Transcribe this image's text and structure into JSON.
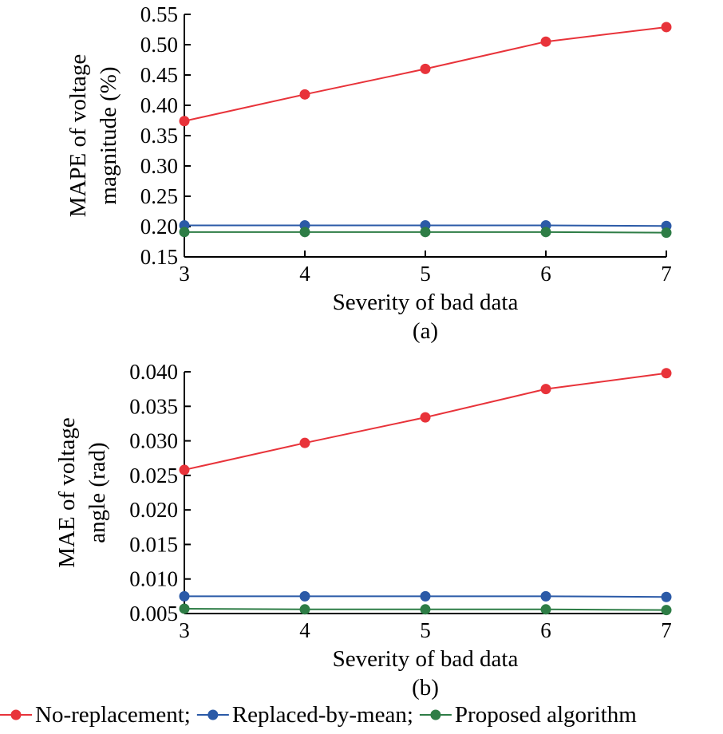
{
  "chart_data": [
    {
      "type": "line",
      "caption": "(a)",
      "xlabel": "Severity of bad data",
      "ylabel_lines": [
        "MAPE of voltage",
        "magnitude (%)"
      ],
      "x": [
        3,
        4,
        5,
        6,
        7
      ],
      "xlim": [
        3,
        7
      ],
      "ylim": [
        0.15,
        0.55
      ],
      "xticks": [
        "3",
        "4",
        "5",
        "6",
        "7"
      ],
      "yticks": [
        "0.15",
        "0.20",
        "0.25",
        "0.30",
        "0.35",
        "0.40",
        "0.45",
        "0.50",
        "0.55"
      ],
      "grid": false,
      "series": [
        {
          "name": "No-replacement",
          "color": "#e8333a",
          "values": [
            0.374,
            0.418,
            0.46,
            0.505,
            0.529
          ]
        },
        {
          "name": "Replaced-by-mean",
          "color": "#2b5aa7",
          "values": [
            0.202,
            0.202,
            0.202,
            0.202,
            0.201
          ]
        },
        {
          "name": "Proposed algorithm",
          "color": "#2e7d46",
          "values": [
            0.191,
            0.191,
            0.191,
            0.191,
            0.19
          ]
        }
      ]
    },
    {
      "type": "line",
      "caption": "(b)",
      "xlabel": "Severity of bad data",
      "ylabel_lines": [
        "MAE of voltage",
        "angle (rad)"
      ],
      "x": [
        3,
        4,
        5,
        6,
        7
      ],
      "xlim": [
        3,
        7
      ],
      "ylim": [
        0.005,
        0.04
      ],
      "xticks": [
        "3",
        "4",
        "5",
        "6",
        "7"
      ],
      "yticks": [
        "0.005",
        "0.010",
        "0.015",
        "0.020",
        "0.025",
        "0.030",
        "0.035",
        "0.040"
      ],
      "grid": false,
      "series": [
        {
          "name": "No-replacement",
          "color": "#e8333a",
          "values": [
            0.0258,
            0.0297,
            0.0334,
            0.0375,
            0.0398
          ]
        },
        {
          "name": "Replaced-by-mean",
          "color": "#2b5aa7",
          "values": [
            0.0075,
            0.0075,
            0.0075,
            0.0075,
            0.0074
          ]
        },
        {
          "name": "Proposed algorithm",
          "color": "#2e7d46",
          "values": [
            0.0057,
            0.0056,
            0.0056,
            0.0056,
            0.0055
          ]
        }
      ]
    }
  ],
  "legend": {
    "placement": "bottom",
    "items": [
      {
        "label": "No-replacement;",
        "color": "#e8333a"
      },
      {
        "label": "Replaced-by-mean;",
        "color": "#2b5aa7"
      },
      {
        "label": "Proposed algorithm",
        "color": "#2e7d46"
      }
    ]
  }
}
